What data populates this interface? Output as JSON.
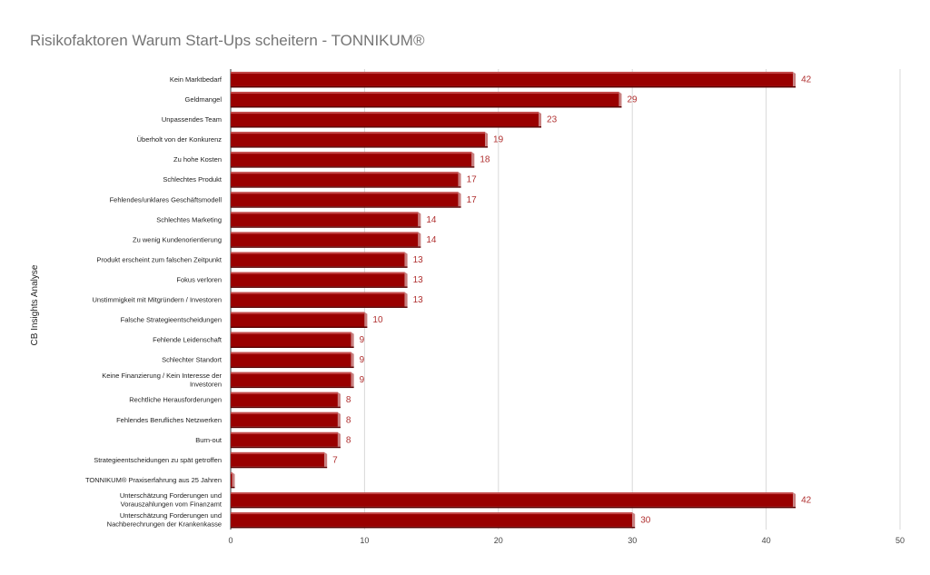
{
  "chart_data": {
    "type": "bar",
    "orientation": "horizontal",
    "title": "Risikofaktoren Warum Start-Ups scheitern - TONNIKUM®",
    "xlabel": "",
    "ylabel": "CB Insights Analyse",
    "xlim": [
      0,
      50
    ],
    "xticks": [
      0,
      10,
      20,
      30,
      40,
      50
    ],
    "grid": true,
    "bar_color": "#990000",
    "label_color": "#b03030",
    "categories": [
      [
        "Kein Marktbedarf"
      ],
      [
        "Geldmangel"
      ],
      [
        "Unpassendes Team"
      ],
      [
        "Überholt von der Konkurenz"
      ],
      [
        "Zu hohe Kosten"
      ],
      [
        "Schlechtes Produkt"
      ],
      [
        "Fehlendes/unklares Geschäftsmodell"
      ],
      [
        "Schlechtes Marketing"
      ],
      [
        "Zu wenig Kundenorientierung"
      ],
      [
        "Produkt erscheint zum falschen Zeitpunkt"
      ],
      [
        "Fokus verloren"
      ],
      [
        "Unstimmigkeit mit Mitgründern / Investoren"
      ],
      [
        "Falsche Strategieentscheidungen"
      ],
      [
        "Fehlende Leidenschaft"
      ],
      [
        "Schlechter Standort"
      ],
      [
        "Keine Finanzierung / Kein Interesse der",
        "Investoren"
      ],
      [
        "Rechtliche Herausforderungen"
      ],
      [
        "Fehlendes Berufliches Netzwerken"
      ],
      [
        "Burn-out"
      ],
      [
        "Strategieentscheidungen zu spät getroffen"
      ],
      [
        "TONNIKUM® Praxiserfahrung aus 25 Jahren"
      ],
      [
        "Unterschätzung Forderungen und",
        "Vorauszahlungen vom Finanzamt"
      ],
      [
        "Unterschätzung Forderungen und",
        "Nachberechrungen der Krankenkasse"
      ]
    ],
    "values": [
      42,
      29,
      23,
      19,
      18,
      17,
      17,
      14,
      14,
      13,
      13,
      13,
      10,
      9,
      9,
      9,
      8,
      8,
      8,
      7,
      0,
      42,
      30
    ],
    "value_labels": [
      "42",
      "29",
      "23",
      "19",
      "18",
      "17",
      "17",
      "14",
      "14",
      "13",
      "13",
      "13",
      "10",
      "9",
      "9",
      "9",
      "8",
      "8",
      "8",
      "7",
      "",
      "42",
      "30"
    ]
  }
}
